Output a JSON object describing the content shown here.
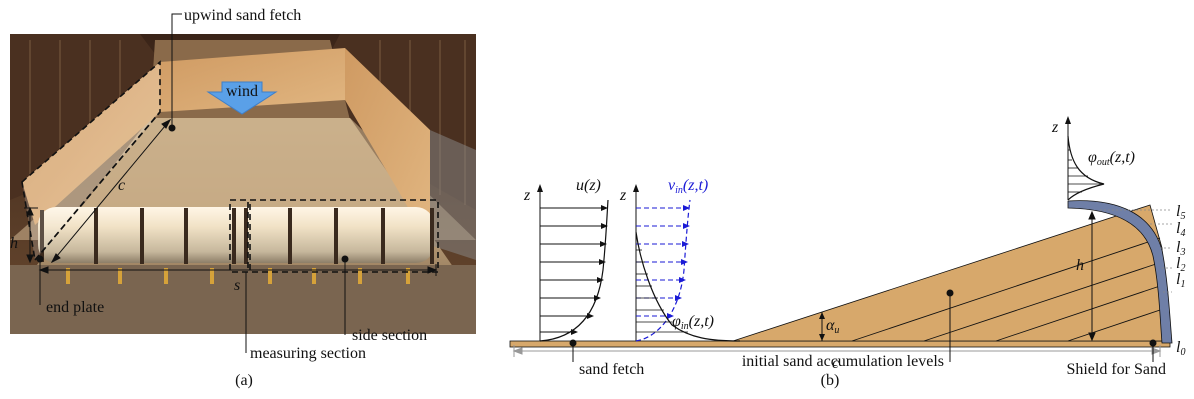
{
  "panel_a": {
    "caption": "(a)",
    "labels": {
      "upwind": "upwind sand fetch",
      "wind": "wind",
      "c": "c",
      "h": "h",
      "s": "s",
      "end_plate": "end plate",
      "measuring": "measuring section",
      "side": "side section"
    }
  },
  "panel_b": {
    "caption": "(b)",
    "labels": {
      "u": "u(z)",
      "z1": "z",
      "z2": "z",
      "z3": "z",
      "vin_v": "v",
      "vin_sub": "in",
      "vin_args": "(z,t)",
      "phiin_phi": "φ",
      "phiin_sub": "in",
      "phiin_args": "(z,t)",
      "phiout_phi": "φ",
      "phiout_sub": "out",
      "phiout_args": "(z,t)",
      "alpha": "α",
      "alpha_sub": "u",
      "h": "h",
      "c": "c",
      "sand_fetch": "sand fetch",
      "initial_levels": "initial sand accumulation levels",
      "shield": "Shield for Sand",
      "l": "l",
      "levels": [
        "0",
        "1",
        "2",
        "3",
        "4",
        "5"
      ]
    },
    "colors": {
      "sand": "#d7a86b",
      "shield": "#6f7fa7",
      "blue": "#1a1ad6"
    }
  }
}
